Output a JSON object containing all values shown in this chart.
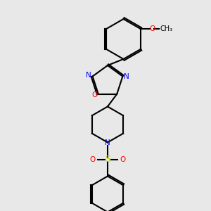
{
  "background_color": "#e8e8e8",
  "bond_color": "#000000",
  "atom_colors": {
    "N": "#0000ff",
    "O": "#ff0000",
    "S": "#cccc00",
    "C": "#000000"
  },
  "figsize": [
    3.0,
    3.0
  ],
  "dpi": 100
}
